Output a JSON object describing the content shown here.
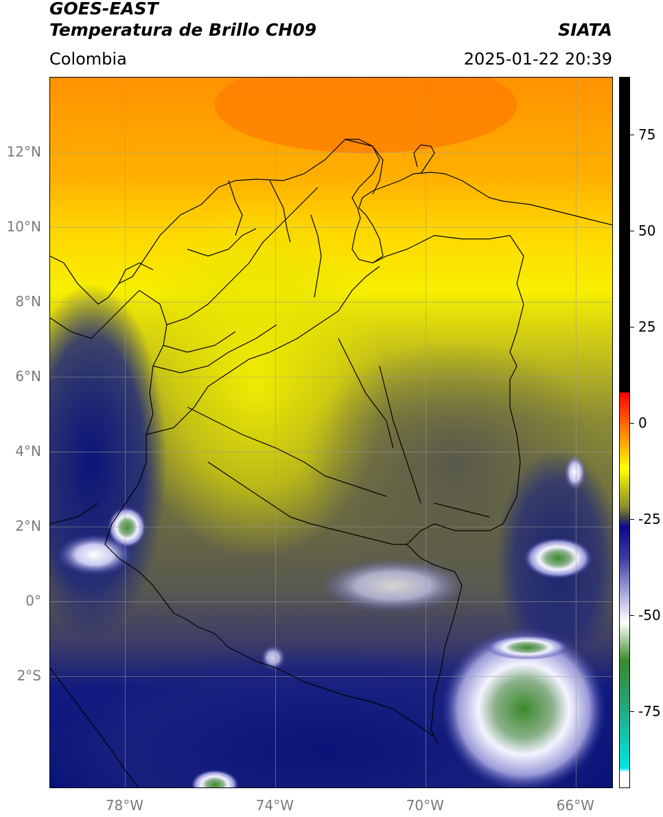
{
  "header": {
    "satellite": "GOES-EAST",
    "product": "Temperatura de Brillo CH09",
    "organization": "SIATA",
    "region": "Colombia",
    "timestamp": "2025-01-22 20:39"
  },
  "map": {
    "extent": {
      "lon_min": -80,
      "lon_max": -65,
      "lat_min": -5,
      "lat_max": 14
    },
    "lat_ticks": [
      {
        "value": 12,
        "label": "12°N"
      },
      {
        "value": 10,
        "label": "10°N"
      },
      {
        "value": 8,
        "label": "8°N"
      },
      {
        "value": 6,
        "label": "6°N"
      },
      {
        "value": 4,
        "label": "4°N"
      },
      {
        "value": 2,
        "label": "2°N"
      },
      {
        "value": 0,
        "label": "0°"
      },
      {
        "value": -2,
        "label": "2°S"
      }
    ],
    "lon_ticks": [
      {
        "value": -78,
        "label": "78°W"
      },
      {
        "value": -74,
        "label": "74°W"
      },
      {
        "value": -70,
        "label": "70°W"
      },
      {
        "value": -66,
        "label": "66°W"
      }
    ],
    "grid": true,
    "colors": {
      "orange": "#ff8c00",
      "yellow": "#f7f200",
      "olive": "#8a8a32",
      "gray": "#5a5a5a",
      "navy": "#0a1a7a",
      "white": "#f5f5ff",
      "green": "#3a8a2a"
    }
  },
  "colorbar": {
    "vmin": -95,
    "vmax": 90,
    "ticks": [
      {
        "value": 75,
        "label": "75"
      },
      {
        "value": 50,
        "label": "50"
      },
      {
        "value": 25,
        "label": "25"
      },
      {
        "value": 0,
        "label": "0"
      },
      {
        "value": -25,
        "label": "-25"
      },
      {
        "value": -50,
        "label": "-50"
      },
      {
        "value": -75,
        "label": "-75"
      }
    ],
    "stops": [
      {
        "value": 90,
        "color": "#000000"
      },
      {
        "value": 8,
        "color": "#000000"
      },
      {
        "value": 7.9,
        "color": "#ff0000"
      },
      {
        "value": -2,
        "color": "#ff7f00"
      },
      {
        "value": -12,
        "color": "#ffff00"
      },
      {
        "value": -22,
        "color": "#8a8a30"
      },
      {
        "value": -25,
        "color": "#404050"
      },
      {
        "value": -27,
        "color": "#0a0a8a"
      },
      {
        "value": -35,
        "color": "#3a3aa0"
      },
      {
        "value": -45,
        "color": "#b0b0e0"
      },
      {
        "value": -52,
        "color": "#ffffff"
      },
      {
        "value": -62,
        "color": "#3a8a2a"
      },
      {
        "value": -72,
        "color": "#2aa070"
      },
      {
        "value": -90,
        "color": "#00e5e5"
      },
      {
        "value": -91,
        "color": "#ffffff"
      },
      {
        "value": -95,
        "color": "#ffffff"
      }
    ]
  }
}
